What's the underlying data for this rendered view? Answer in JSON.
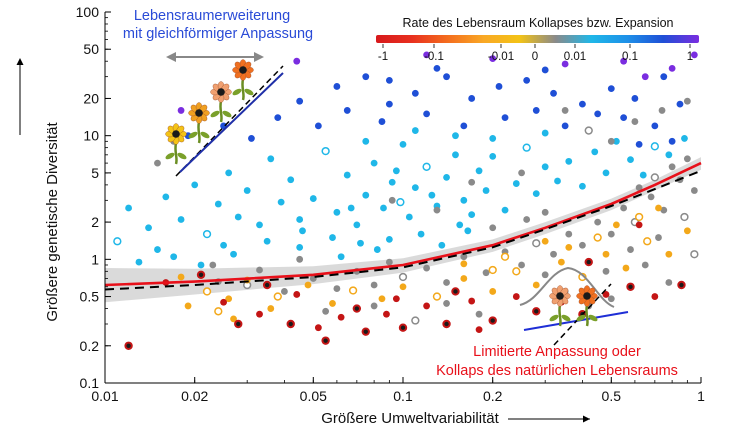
{
  "chart_data": {
    "type": "scatter",
    "xscale": "log",
    "yscale": "log",
    "xlim": [
      0.01,
      1
    ],
    "ylim": [
      0.1,
      100
    ],
    "xticks": [
      0.01,
      0.02,
      0.05,
      0.1,
      0.2,
      0.5,
      1
    ],
    "xtick_labels": [
      "0.01",
      "0.02",
      "0.05",
      "0.1",
      "0.2",
      "0.5",
      "1"
    ],
    "yticks": [
      0.1,
      0.2,
      0.5,
      1,
      2,
      5,
      10,
      20,
      50,
      100
    ],
    "ytick_labels": [
      "0.1",
      "0.2",
      "0.5",
      "1",
      "2",
      "5",
      "10",
      "20",
      "50",
      "100"
    ],
    "xlabel": "Größere Umweltvariabilität",
    "ylabel": "Größere genetische Diversität",
    "grid": false,
    "colorbar": {
      "title": "Rate des Lebensraum Kollapses bzw. Expansion",
      "tick_labels": [
        "-1",
        "-0.1",
        "-0.01",
        "0",
        "0.01",
        "0.1",
        "1"
      ],
      "stops": [
        "#d7191c",
        "#e8301f",
        "#f46d1e",
        "#f9a825",
        "#f3c316",
        "#8a8a8a",
        "#1fb7e8",
        "#1e90e8",
        "#1f4fd6",
        "#7a2de0"
      ]
    },
    "annotations": {
      "top_left": [
        "Lebensraumerweiterung",
        "mit gleichförmiger Anpassung"
      ],
      "bottom_right": [
        "Limitierte Anpassung oder",
        "Kollaps des natürlichen Lebensraums"
      ],
      "top_left_color": "#2a4bd7",
      "bottom_right_color": "#e8101a"
    },
    "series": [
      {
        "type": "fit",
        "x": [
          0.01,
          0.02,
          0.05,
          0.1,
          0.2,
          0.3,
          0.5,
          0.7,
          1
        ],
        "y": [
          0.62,
          0.66,
          0.75,
          0.9,
          1.3,
          1.8,
          2.8,
          4.0,
          6.0
        ],
        "band_low": [
          0.45,
          0.52,
          0.63,
          0.78,
          1.15,
          1.6,
          2.5,
          3.6,
          5.3
        ],
        "band_high": [
          0.85,
          0.84,
          0.88,
          1.02,
          1.45,
          2.0,
          3.1,
          4.4,
          6.7
        ],
        "color": "#e8101a"
      },
      {
        "type": "fit",
        "dashed": true,
        "x": [
          0.01,
          0.02,
          0.05,
          0.1,
          0.2,
          0.3,
          0.5,
          0.7,
          1
        ],
        "y": [
          0.57,
          0.62,
          0.72,
          0.86,
          1.25,
          1.75,
          2.7,
          3.7,
          5.2
        ],
        "color": "#000000"
      },
      {
        "category": "expansion_strong",
        "color": "#1f4fd6",
        "points": [
          [
            0.045,
            19
          ],
          [
            0.06,
            25
          ],
          [
            0.075,
            30
          ],
          [
            0.09,
            28
          ],
          [
            0.11,
            22
          ],
          [
            0.14,
            30
          ],
          [
            0.17,
            20
          ],
          [
            0.21,
            25
          ],
          [
            0.26,
            28
          ],
          [
            0.32,
            22
          ],
          [
            0.4,
            18
          ],
          [
            0.5,
            24
          ],
          [
            0.6,
            20
          ],
          [
            0.75,
            30
          ],
          [
            0.55,
            14
          ],
          [
            0.45,
            15
          ],
          [
            0.35,
            12
          ],
          [
            0.28,
            16
          ],
          [
            0.22,
            14
          ],
          [
            0.16,
            12
          ],
          [
            0.12,
            15
          ],
          [
            0.085,
            13
          ],
          [
            0.065,
            16
          ],
          [
            0.052,
            12
          ],
          [
            0.038,
            14
          ],
          [
            0.13,
            35
          ],
          [
            0.3,
            34
          ],
          [
            0.09,
            18
          ],
          [
            0.7,
            12
          ],
          [
            0.85,
            18
          ],
          [
            0.019,
            10
          ],
          [
            0.025,
            12
          ],
          [
            0.031,
            9.5
          ],
          [
            0.8,
            9
          ],
          [
            0.62,
            8.5
          ]
        ]
      },
      {
        "category": "expansion_extreme",
        "color": "#7a2de0",
        "points": [
          [
            0.018,
            16
          ],
          [
            0.044,
            40
          ],
          [
            0.12,
            45
          ],
          [
            0.2,
            42
          ],
          [
            0.35,
            38
          ],
          [
            0.55,
            40
          ],
          [
            0.8,
            35
          ],
          [
            0.95,
            45
          ],
          [
            0.65,
            30
          ]
        ]
      },
      {
        "category": "expansion_moderate",
        "color": "#1fb7e8",
        "points": [
          [
            0.012,
            2.6
          ],
          [
            0.014,
            1.8
          ],
          [
            0.016,
            3.2
          ],
          [
            0.018,
            2.1
          ],
          [
            0.02,
            4.0
          ],
          [
            0.022,
            1.6
          ],
          [
            0.024,
            2.8
          ],
          [
            0.026,
            5.0
          ],
          [
            0.028,
            2.2
          ],
          [
            0.03,
            3.6
          ],
          [
            0.033,
            1.9
          ],
          [
            0.036,
            6.5
          ],
          [
            0.039,
            2.9
          ],
          [
            0.042,
            4.4
          ],
          [
            0.046,
            1.7
          ],
          [
            0.05,
            3.1
          ],
          [
            0.055,
            7.5
          ],
          [
            0.06,
            2.4
          ],
          [
            0.065,
            4.8
          ],
          [
            0.07,
            1.9
          ],
          [
            0.075,
            3.3
          ],
          [
            0.08,
            6.0
          ],
          [
            0.086,
            2.6
          ],
          [
            0.092,
            4.2
          ],
          [
            0.1,
            8.5
          ],
          [
            0.105,
            2.2
          ],
          [
            0.11,
            3.8
          ],
          [
            0.12,
            5.6
          ],
          [
            0.13,
            2.7
          ],
          [
            0.14,
            4.6
          ],
          [
            0.15,
            7.0
          ],
          [
            0.16,
            3.0
          ],
          [
            0.17,
            2.3
          ],
          [
            0.18,
            5.2
          ],
          [
            0.19,
            3.6
          ],
          [
            0.2,
            6.8
          ],
          [
            0.22,
            2.5
          ],
          [
            0.24,
            4.1
          ],
          [
            0.26,
            8.0
          ],
          [
            0.28,
            3.4
          ],
          [
            0.3,
            5.6
          ],
          [
            0.33,
            4.3
          ],
          [
            0.36,
            6.2
          ],
          [
            0.4,
            3.9
          ],
          [
            0.44,
            7.4
          ],
          [
            0.48,
            5.0
          ],
          [
            0.52,
            9.0
          ],
          [
            0.58,
            6.4
          ],
          [
            0.64,
            4.8
          ],
          [
            0.7,
            8.2
          ],
          [
            0.78,
            7.0
          ],
          [
            0.88,
            9.5
          ],
          [
            0.025,
            1.3
          ],
          [
            0.035,
            1.4
          ],
          [
            0.045,
            1.25
          ],
          [
            0.058,
            1.5
          ],
          [
            0.072,
            1.35
          ],
          [
            0.09,
            1.45
          ],
          [
            0.115,
            1.6
          ],
          [
            0.015,
            1.2
          ],
          [
            0.011,
            1.4
          ],
          [
            0.013,
            0.95
          ],
          [
            0.017,
            1.05
          ],
          [
            0.021,
            0.9
          ],
          [
            0.027,
            1.1
          ],
          [
            0.062,
            1.05
          ],
          [
            0.082,
            1.2
          ],
          [
            0.135,
            1.3
          ],
          [
            0.165,
            1.7
          ],
          [
            0.045,
            2.1
          ],
          [
            0.067,
            2.6
          ],
          [
            0.098,
            2.9
          ],
          [
            0.125,
            3.3
          ],
          [
            0.155,
            1.9
          ],
          [
            0.095,
            5.2
          ],
          [
            0.075,
            9.0
          ],
          [
            0.11,
            11
          ],
          [
            0.15,
            10
          ],
          [
            0.2,
            9.5
          ],
          [
            0.3,
            10.5
          ]
        ]
      },
      {
        "category": "stable",
        "color": "#8a8a8a",
        "points": [
          [
            0.015,
            6.0
          ],
          [
            0.017,
            9.0
          ],
          [
            0.023,
            0.9
          ],
          [
            0.03,
            0.62
          ],
          [
            0.04,
            0.55
          ],
          [
            0.05,
            0.7
          ],
          [
            0.06,
            0.58
          ],
          [
            0.07,
            0.8
          ],
          [
            0.08,
            0.62
          ],
          [
            0.09,
            0.95
          ],
          [
            0.1,
            0.72
          ],
          [
            0.12,
            0.85
          ],
          [
            0.14,
            0.65
          ],
          [
            0.16,
            1.05
          ],
          [
            0.19,
            0.78
          ],
          [
            0.22,
            1.15
          ],
          [
            0.25,
            0.9
          ],
          [
            0.28,
            1.35
          ],
          [
            0.32,
            1.1
          ],
          [
            0.36,
            1.6
          ],
          [
            0.4,
            1.3
          ],
          [
            0.45,
            2.0
          ],
          [
            0.5,
            1.6
          ],
          [
            0.55,
            2.6
          ],
          [
            0.6,
            2.0
          ],
          [
            0.68,
            3.2
          ],
          [
            0.75,
            2.5
          ],
          [
            0.85,
            4.4
          ],
          [
            0.95,
            3.6
          ],
          [
            0.9,
            6.5
          ],
          [
            0.8,
            5.6
          ],
          [
            0.7,
            4.6
          ],
          [
            0.62,
            3.8
          ],
          [
            0.3,
            2.4
          ],
          [
            0.26,
            2.1
          ],
          [
            0.2,
            1.8
          ],
          [
            0.055,
            0.38
          ],
          [
            0.08,
            0.42
          ],
          [
            0.11,
            0.32
          ],
          [
            0.14,
            0.44
          ],
          [
            0.18,
            0.36
          ],
          [
            0.35,
            0.55
          ],
          [
            0.48,
            0.8
          ],
          [
            0.58,
            1.2
          ],
          [
            0.72,
            1.5
          ],
          [
            0.88,
            2.2
          ],
          [
            0.045,
            1.0
          ],
          [
            0.033,
            0.82
          ],
          [
            0.024,
            0.66
          ],
          [
            0.3,
            0.75
          ],
          [
            0.65,
            0.9
          ],
          [
            0.78,
            0.65
          ],
          [
            0.95,
            1.1
          ],
          [
            0.42,
            0.42
          ],
          [
            0.5,
            0.48
          ],
          [
            0.13,
            2.5
          ],
          [
            0.17,
            4.2
          ],
          [
            0.092,
            3.0
          ],
          [
            0.5,
            9.0
          ],
          [
            0.42,
            11
          ],
          [
            0.6,
            13
          ],
          [
            0.35,
            16
          ],
          [
            0.25,
            5.0
          ],
          [
            0.74,
            16
          ],
          [
            0.9,
            19
          ]
        ]
      },
      {
        "category": "collapse_moderate",
        "color": "#f3a81a",
        "points": [
          [
            0.018,
            0.72
          ],
          [
            0.022,
            0.55
          ],
          [
            0.026,
            0.48
          ],
          [
            0.03,
            0.68
          ],
          [
            0.038,
            0.5
          ],
          [
            0.048,
            0.62
          ],
          [
            0.058,
            0.44
          ],
          [
            0.068,
            0.56
          ],
          [
            0.085,
            0.48
          ],
          [
            0.1,
            0.6
          ],
          [
            0.13,
            0.5
          ],
          [
            0.16,
            0.7
          ],
          [
            0.2,
            0.55
          ],
          [
            0.24,
            0.8
          ],
          [
            0.28,
            0.62
          ],
          [
            0.34,
            0.95
          ],
          [
            0.4,
            0.72
          ],
          [
            0.48,
            1.1
          ],
          [
            0.56,
            0.85
          ],
          [
            0.66,
            1.4
          ],
          [
            0.78,
            1.1
          ],
          [
            0.9,
            1.7
          ],
          [
            0.45,
            1.5
          ],
          [
            0.36,
            1.25
          ],
          [
            0.52,
            1.9
          ],
          [
            0.62,
            2.2
          ],
          [
            0.72,
            2.6
          ],
          [
            0.3,
            1.4
          ],
          [
            0.22,
            1.05
          ],
          [
            0.16,
            0.92
          ],
          [
            0.019,
            0.42
          ],
          [
            0.024,
            0.38
          ],
          [
            0.027,
            0.33
          ],
          [
            0.036,
            0.4
          ],
          [
            0.2,
            0.82
          ]
        ]
      },
      {
        "category": "collapse_strong",
        "color": "#c41515",
        "points": [
          [
            0.012,
            0.2
          ],
          [
            0.016,
            0.65
          ],
          [
            0.021,
            0.75
          ],
          [
            0.025,
            0.45
          ],
          [
            0.028,
            0.3
          ],
          [
            0.033,
            0.36
          ],
          [
            0.042,
            0.3
          ],
          [
            0.052,
            0.28
          ],
          [
            0.055,
            0.22
          ],
          [
            0.062,
            0.34
          ],
          [
            0.075,
            0.26
          ],
          [
            0.088,
            0.36
          ],
          [
            0.1,
            0.28
          ],
          [
            0.12,
            0.42
          ],
          [
            0.14,
            0.3
          ],
          [
            0.17,
            0.46
          ],
          [
            0.2,
            0.32
          ],
          [
            0.24,
            0.5
          ],
          [
            0.28,
            0.38
          ],
          [
            0.34,
            0.45
          ],
          [
            0.4,
            0.36
          ],
          [
            0.48,
            0.52
          ],
          [
            0.58,
            0.6
          ],
          [
            0.7,
            0.5
          ],
          [
            0.86,
            0.62
          ],
          [
            0.18,
            0.27
          ],
          [
            0.15,
            0.55
          ],
          [
            0.095,
            0.48
          ],
          [
            0.07,
            0.4
          ],
          [
            0.044,
            0.52
          ],
          [
            0.035,
            0.62
          ],
          [
            0.62,
            1.9
          ],
          [
            0.42,
            0.95
          ]
        ]
      }
    ]
  }
}
